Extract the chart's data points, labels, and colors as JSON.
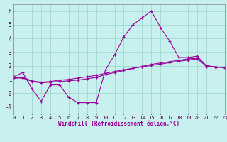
{
  "xlabel": "Windchill (Refroidissement éolien,°C)",
  "bg_color": "#c8f0ee",
  "grid_color": "#a0d8d4",
  "line_color": "#990099",
  "xlim": [
    0,
    23
  ],
  "ylim": [
    -1.5,
    6.5
  ],
  "yticks": [
    -1,
    0,
    1,
    2,
    3,
    4,
    5,
    6
  ],
  "xticks": [
    0,
    1,
    2,
    3,
    4,
    5,
    6,
    7,
    8,
    9,
    10,
    11,
    12,
    13,
    14,
    15,
    16,
    17,
    18,
    19,
    20,
    21,
    22,
    23
  ],
  "line1_x": [
    0,
    1,
    2,
    3,
    4,
    5,
    6,
    7,
    8,
    9,
    10,
    11,
    12,
    13,
    14,
    15,
    16,
    17,
    18,
    19,
    20,
    21,
    22
  ],
  "line1_y": [
    1.2,
    1.5,
    0.3,
    -0.6,
    0.6,
    0.6,
    -0.3,
    -0.7,
    -0.7,
    -0.7,
    1.7,
    2.8,
    4.1,
    5.0,
    5.5,
    6.0,
    4.8,
    3.8,
    2.6,
    2.6,
    2.7,
    2.0,
    1.9
  ],
  "line2_x": [
    0,
    1,
    2,
    3,
    4,
    5,
    6,
    7,
    8,
    9,
    10,
    11,
    12,
    13,
    14,
    15,
    16,
    17,
    18,
    19,
    20,
    21,
    22,
    23
  ],
  "line2_y": [
    1.1,
    1.1,
    0.85,
    0.75,
    0.8,
    0.85,
    0.9,
    0.95,
    1.05,
    1.15,
    1.35,
    1.5,
    1.65,
    1.8,
    1.95,
    2.1,
    2.2,
    2.3,
    2.4,
    2.5,
    2.55,
    1.95,
    1.9,
    1.85
  ],
  "line3_x": [
    0,
    1,
    2,
    3,
    4,
    5,
    6,
    7,
    8,
    9,
    10,
    11,
    12,
    13,
    14,
    15,
    16,
    17,
    18,
    19,
    20,
    21,
    22,
    23
  ],
  "line3_y": [
    1.1,
    1.15,
    0.9,
    0.8,
    0.85,
    0.95,
    1.0,
    1.1,
    1.2,
    1.3,
    1.45,
    1.58,
    1.7,
    1.82,
    1.92,
    2.02,
    2.12,
    2.22,
    2.32,
    2.42,
    2.5,
    2.0,
    1.92,
    1.87
  ]
}
